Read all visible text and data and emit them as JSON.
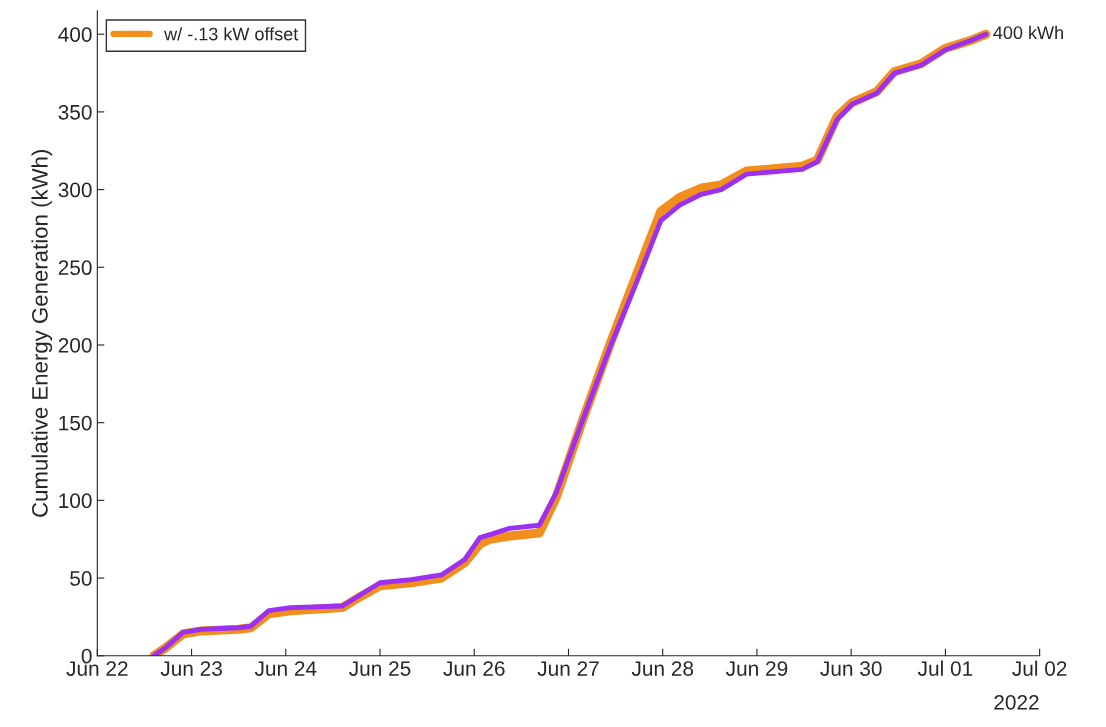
{
  "chart_data": {
    "type": "line",
    "ylabel": "Cumulative Energy Generation (kWh)",
    "x": [
      "2022-06-22T14:24",
      "2022-06-22T17:17",
      "2022-06-22T21:50",
      "2022-06-23T02:24",
      "2022-06-23T12:00",
      "2022-06-23T15:07",
      "2022-06-23T19:41",
      "2022-06-24T01:12",
      "2022-06-24T14:24",
      "2022-06-24T18:14",
      "2022-06-25T00:00",
      "2022-06-25T07:55",
      "2022-06-25T15:36",
      "2022-06-25T21:36",
      "2022-06-26T01:26",
      "2022-06-26T04:00",
      "2022-06-26T09:00",
      "2022-06-26T16:34",
      "2022-06-26T20:53",
      "2022-06-27T03:22",
      "2022-06-27T10:48",
      "2022-06-27T17:17",
      "2022-06-27T23:31",
      "2022-06-28T04:19",
      "2022-06-28T09:50",
      "2022-06-28T14:53",
      "2022-06-28T21:22",
      "2022-06-29T11:31",
      "2022-06-29T15:22",
      "2022-06-29T20:24",
      "2022-06-30T00:14",
      "2022-06-30T06:29",
      "2022-06-30T11:02",
      "2022-06-30T17:46",
      "2022-07-01T00:00",
      "2022-07-01T06:29",
      "2022-07-01T10:19"
    ],
    "series": [
      {
        "name": "w/ -.13 kW offset",
        "color": "#f28e1c",
        "values": [
          0,
          5,
          14,
          16,
          17,
          18,
          27,
          29,
          31,
          37,
          45,
          47,
          50,
          60,
          72,
          75,
          77,
          79,
          102,
          150,
          202,
          245,
          286,
          295,
          301,
          303,
          312,
          315,
          319,
          347,
          356,
          363,
          376,
          381,
          391,
          396,
          400
        ]
      },
      {
        "color": "#9b30f0",
        "values": [
          0,
          5,
          15,
          17,
          18,
          19,
          29,
          31,
          32,
          38,
          47,
          49,
          52,
          62,
          76,
          78,
          82,
          84,
          105,
          150,
          200,
          240,
          280,
          290,
          297,
          300,
          310,
          313,
          318,
          345,
          355,
          362,
          375,
          380,
          390,
          396,
          400
        ]
      }
    ],
    "xlim": [
      "2022-06-22",
      "2022-07-02"
    ],
    "xticks": [
      {
        "value": "2022-06-22",
        "label": "Jun 22"
      },
      {
        "value": "2022-06-23",
        "label": "Jun 23"
      },
      {
        "value": "2022-06-24",
        "label": "Jun 24"
      },
      {
        "value": "2022-06-25",
        "label": "Jun 25"
      },
      {
        "value": "2022-06-26",
        "label": "Jun 26"
      },
      {
        "value": "2022-06-27",
        "label": "Jun 27"
      },
      {
        "value": "2022-06-28",
        "label": "Jun 28"
      },
      {
        "value": "2022-06-29",
        "label": "Jun 29"
      },
      {
        "value": "2022-06-30",
        "label": "Jun 30"
      },
      {
        "value": "2022-07-01",
        "label": "Jul 01"
      },
      {
        "value": "2022-07-02",
        "label": "Jul 02"
      }
    ],
    "ylim": [
      0,
      415
    ],
    "yticks": [
      0,
      50,
      100,
      150,
      200,
      250,
      300,
      350,
      400
    ],
    "annotations": [
      {
        "text": "400 kWh",
        "x": "2022-07-01T10:19",
        "y": 400
      },
      "2022"
    ],
    "legend": "top left",
    "grid": false,
    "line_style": "solid",
    "marker": "none"
  }
}
